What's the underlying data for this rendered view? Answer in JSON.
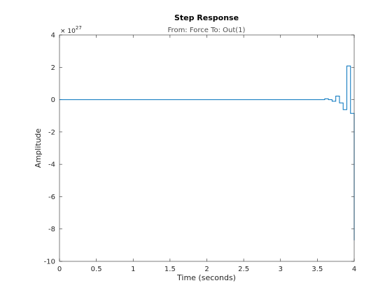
{
  "chart_data": {
    "type": "line",
    "style": "stairs",
    "title": "Step Response",
    "subtitle": "From: Force  To: Out(1)",
    "xlabel": "Time (seconds)",
    "ylabel": "Amplitude",
    "exponent_label": "× 10",
    "exponent_power": "27",
    "xlim": [
      0,
      4
    ],
    "ylim": [
      -10,
      4
    ],
    "x_ticks": [
      0,
      0.5,
      1,
      1.5,
      2,
      2.5,
      3,
      3.5,
      4
    ],
    "x_tick_labels": [
      "0",
      "0.5",
      "1",
      "1.5",
      "2",
      "2.5",
      "3",
      "3.5",
      "4"
    ],
    "y_ticks": [
      -10,
      -8,
      -6,
      -4,
      -2,
      0,
      2,
      4
    ],
    "y_tick_labels": [
      "-10",
      "-8",
      "-6",
      "-4",
      "-2",
      "0",
      "2",
      "4"
    ],
    "grid": false,
    "series_color": "#0072BD",
    "axis_color": "#262626",
    "series": [
      {
        "x": [
          0,
          3.6,
          3.65,
          3.7,
          3.75,
          3.8,
          3.85,
          3.9,
          3.95,
          4.0
        ],
        "y": [
          0,
          0.05,
          0.0,
          -0.1,
          0.22,
          -0.2,
          -0.62,
          2.08,
          -0.85,
          -8.7
        ]
      }
    ]
  }
}
